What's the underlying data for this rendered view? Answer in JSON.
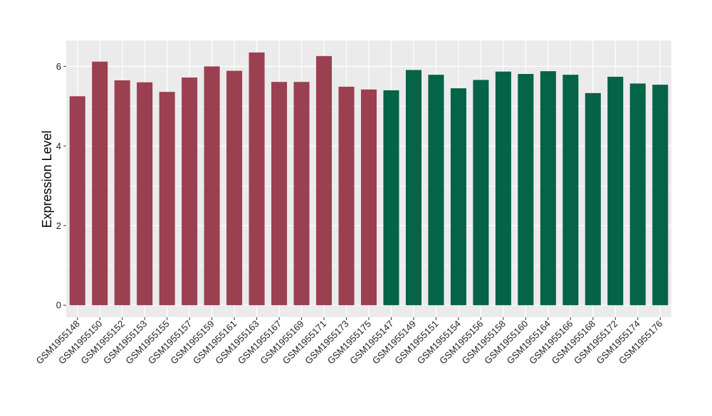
{
  "chart_data": {
    "type": "bar",
    "title": "",
    "xlabel": "",
    "ylabel": "Expression Level",
    "ylim": [
      -0.3,
      6.65
    ],
    "yticks": [
      0,
      2,
      4,
      6
    ],
    "grid": true,
    "categories": [
      "GSM1955148",
      "GSM1955150",
      "GSM1955152",
      "GSM1955153",
      "GSM1955155",
      "GSM1955157",
      "GSM1955159",
      "GSM1955161",
      "GSM1955163",
      "GSM1955167",
      "GSM1955169",
      "GSM1955171",
      "GSM1955173",
      "GSM1955175",
      "GSM1955147",
      "GSM1955149",
      "GSM1955151",
      "GSM1955154",
      "GSM1955156",
      "GSM1955158",
      "GSM1955160",
      "GSM1955164",
      "GSM1955166",
      "GSM1955168",
      "GSM1955172",
      "GSM1955174",
      "GSM1955176"
    ],
    "values": [
      5.25,
      6.12,
      5.65,
      5.6,
      5.36,
      5.72,
      6.0,
      5.89,
      6.35,
      5.61,
      5.61,
      6.26,
      5.49,
      5.42,
      5.4,
      5.91,
      5.79,
      5.45,
      5.66,
      5.87,
      5.81,
      5.88,
      5.79,
      5.33,
      5.74,
      5.57,
      5.54
    ],
    "groups": [
      0,
      0,
      0,
      0,
      0,
      0,
      0,
      0,
      0,
      0,
      0,
      0,
      0,
      0,
      1,
      1,
      1,
      1,
      1,
      1,
      1,
      1,
      1,
      1,
      1,
      1,
      1
    ],
    "group_colors": [
      "#9b4050",
      "#056347"
    ],
    "panel_background": "#ebebeb",
    "grid_color": "#ffffff"
  }
}
